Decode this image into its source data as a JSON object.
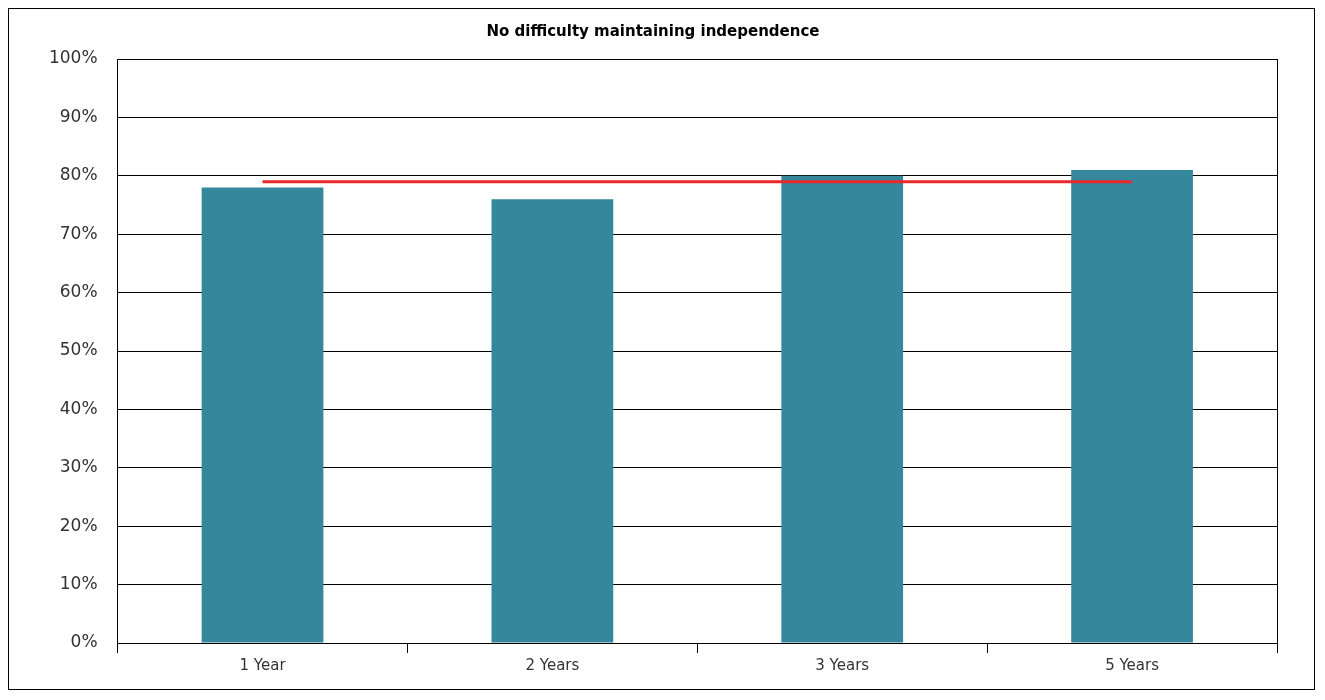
{
  "chart_data": {
    "type": "bar",
    "title": "No difficulty maintaining independence",
    "categories": [
      "1 Year",
      "2 Years",
      "3 Years",
      "5 Years"
    ],
    "series": [
      {
        "color": "#35879b",
        "values": [
          78,
          76,
          80,
          81
        ]
      },
      {
        "type": "line",
        "color": "#e8282b",
        "values": [
          79,
          79,
          79,
          79
        ],
        "marker": "none"
      }
    ],
    "ylim": [
      0,
      100
    ],
    "yticks": [
      {
        "value": 0,
        "label": "0%"
      },
      {
        "value": 10,
        "label": "10%"
      },
      {
        "value": 20,
        "label": "20%"
      },
      {
        "value": 30,
        "label": "30%"
      },
      {
        "value": 40,
        "label": "40%"
      },
      {
        "value": 50,
        "label": "50%"
      },
      {
        "value": 60,
        "label": "60%"
      },
      {
        "value": 70,
        "label": "70%"
      },
      {
        "value": 80,
        "label": "80%"
      },
      {
        "value": 90,
        "label": "90%"
      },
      {
        "value": 100,
        "label": "100%"
      }
    ],
    "grid": "y",
    "legend": false
  }
}
